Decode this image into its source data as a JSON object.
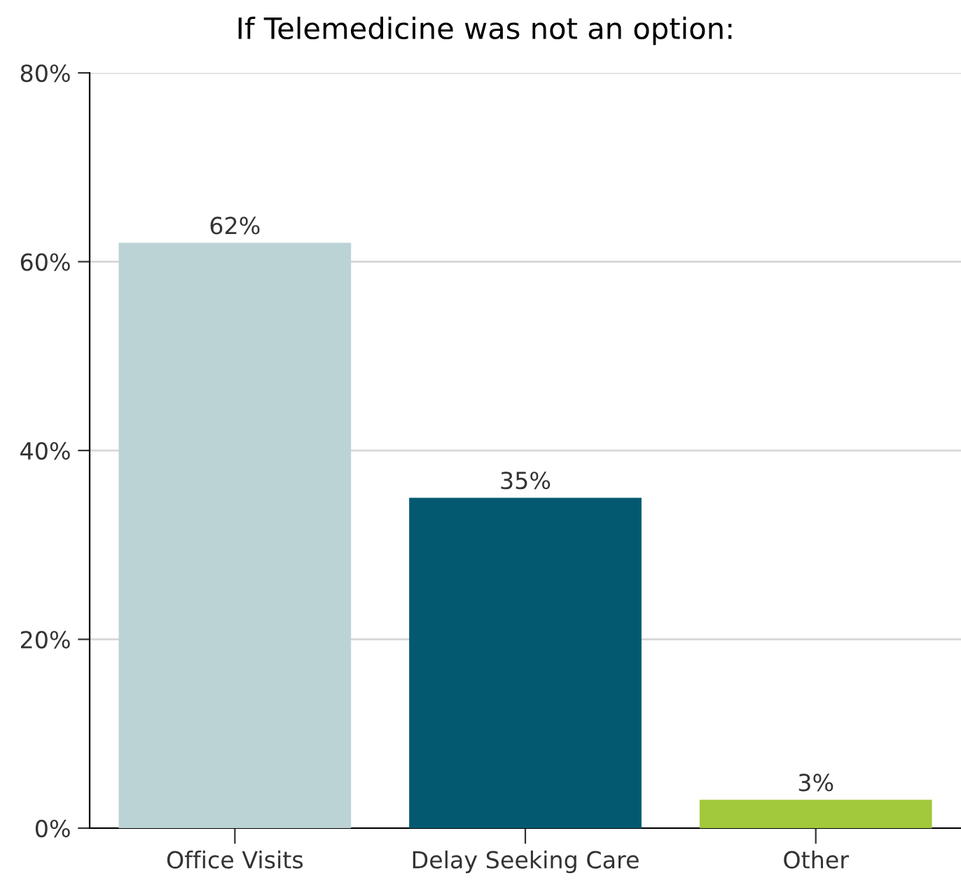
{
  "chart_data": {
    "type": "bar",
    "title": "If Telemedicine was not an option:",
    "categories": [
      "Office Visits",
      "Delay Seeking Care",
      "Other"
    ],
    "values": [
      62,
      35,
      3
    ],
    "colors": [
      "#bcd3d6",
      "#035a70",
      "#a2c83b"
    ],
    "value_labels": [
      "62%",
      "35%",
      "3%"
    ],
    "ylim": [
      0,
      80
    ],
    "yticks": [
      {
        "value": 0,
        "label": "0%"
      },
      {
        "value": 20,
        "label": "20%"
      },
      {
        "value": 40,
        "label": "40%"
      },
      {
        "value": 60,
        "label": "60%"
      },
      {
        "value": 80,
        "label": "80%"
      }
    ],
    "grid": "y"
  }
}
